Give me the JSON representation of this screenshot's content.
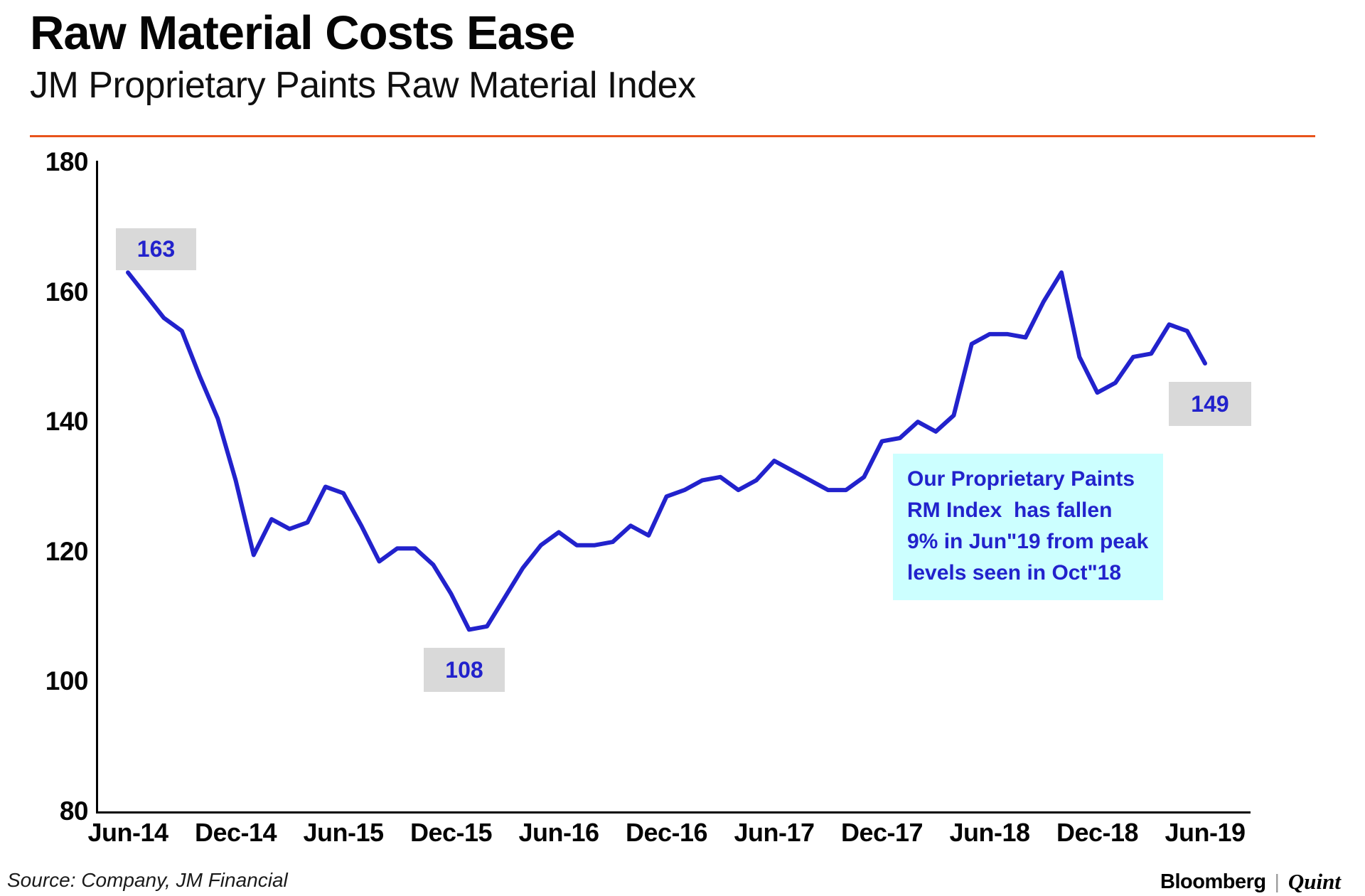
{
  "header": {
    "title": "Raw Material Costs Ease",
    "subtitle": "JM Proprietary Paints Raw Material Index"
  },
  "chart_data": {
    "type": "line",
    "title": "Raw Material Costs Ease",
    "subtitle": "JM Proprietary Paints Raw Material Index",
    "series_name": "JM Proprietary Paints RM Index",
    "x": [
      "Jun-14",
      "Jul-14",
      "Aug-14",
      "Sep-14",
      "Oct-14",
      "Nov-14",
      "Dec-14",
      "Jan-15",
      "Feb-15",
      "Mar-15",
      "Apr-15",
      "May-15",
      "Jun-15",
      "Jul-15",
      "Aug-15",
      "Sep-15",
      "Oct-15",
      "Nov-15",
      "Dec-15",
      "Jan-16",
      "Feb-16",
      "Mar-16",
      "Apr-16",
      "May-16",
      "Jun-16",
      "Jul-16",
      "Aug-16",
      "Sep-16",
      "Oct-16",
      "Nov-16",
      "Dec-16",
      "Jan-17",
      "Feb-17",
      "Mar-17",
      "Apr-17",
      "May-17",
      "Jun-17",
      "Jul-17",
      "Aug-17",
      "Sep-17",
      "Oct-17",
      "Nov-17",
      "Dec-17",
      "Jan-18",
      "Feb-18",
      "Mar-18",
      "Apr-18",
      "May-18",
      "Jun-18",
      "Jul-18",
      "Aug-18",
      "Sep-18",
      "Oct-18",
      "Nov-18",
      "Dec-18",
      "Jan-19",
      "Feb-19",
      "Mar-19",
      "Apr-19",
      "May-19",
      "Jun-19"
    ],
    "values": [
      163,
      159.5,
      156,
      154,
      147,
      140.5,
      131,
      119.5,
      125,
      123.5,
      124.5,
      130,
      129,
      124,
      118.5,
      120.5,
      120.5,
      118,
      113.5,
      108,
      108.5,
      113,
      117.5,
      121,
      123,
      121,
      121,
      121.5,
      124,
      122.5,
      128.5,
      129.5,
      131,
      131.5,
      129.5,
      131,
      134,
      132.5,
      131,
      129.5,
      129.5,
      131.5,
      137,
      137.5,
      140,
      138.5,
      141,
      152,
      153.5,
      153.5,
      153,
      158.5,
      163,
      150,
      144.5,
      146,
      150,
      150.5,
      155,
      154,
      149
    ],
    "x_tick_labels": [
      "Jun-14",
      "Dec-14",
      "Jun-15",
      "Dec-15",
      "Jun-16",
      "Dec-16",
      "Jun-17",
      "Dec-17",
      "Jun-18",
      "Dec-18",
      "Jun-19"
    ],
    "y_ticks": [
      80,
      100,
      120,
      140,
      160,
      180
    ],
    "ylim": [
      80,
      180
    ],
    "grid": false,
    "legend": "none",
    "line_color": "#2222CC",
    "point_labels": [
      {
        "index": 0,
        "text": "163"
      },
      {
        "index": 19,
        "text": "108"
      },
      {
        "index": 60,
        "text": "149"
      }
    ],
    "annotation": {
      "lines": [
        "Our Proprietary Paints",
        "RM Index  has fallen",
        "9% in Jun\"19 from peak",
        "levels seen in Oct\"18"
      ],
      "bg_color": "#CCFFFF",
      "text_color": "#2222CC"
    }
  },
  "colors": {
    "accent_rule": "#E8541C",
    "line": "#2222CC",
    "label_bg": "#D9D9D9",
    "label_text": "#2222CC",
    "annotation_bg": "#CCFFFF",
    "axis": "#000000"
  },
  "footer": {
    "source": "Source: Company, JM Financial",
    "brand": {
      "bloomberg": "Bloomberg",
      "divider": "|",
      "quint": "Quint"
    }
  }
}
